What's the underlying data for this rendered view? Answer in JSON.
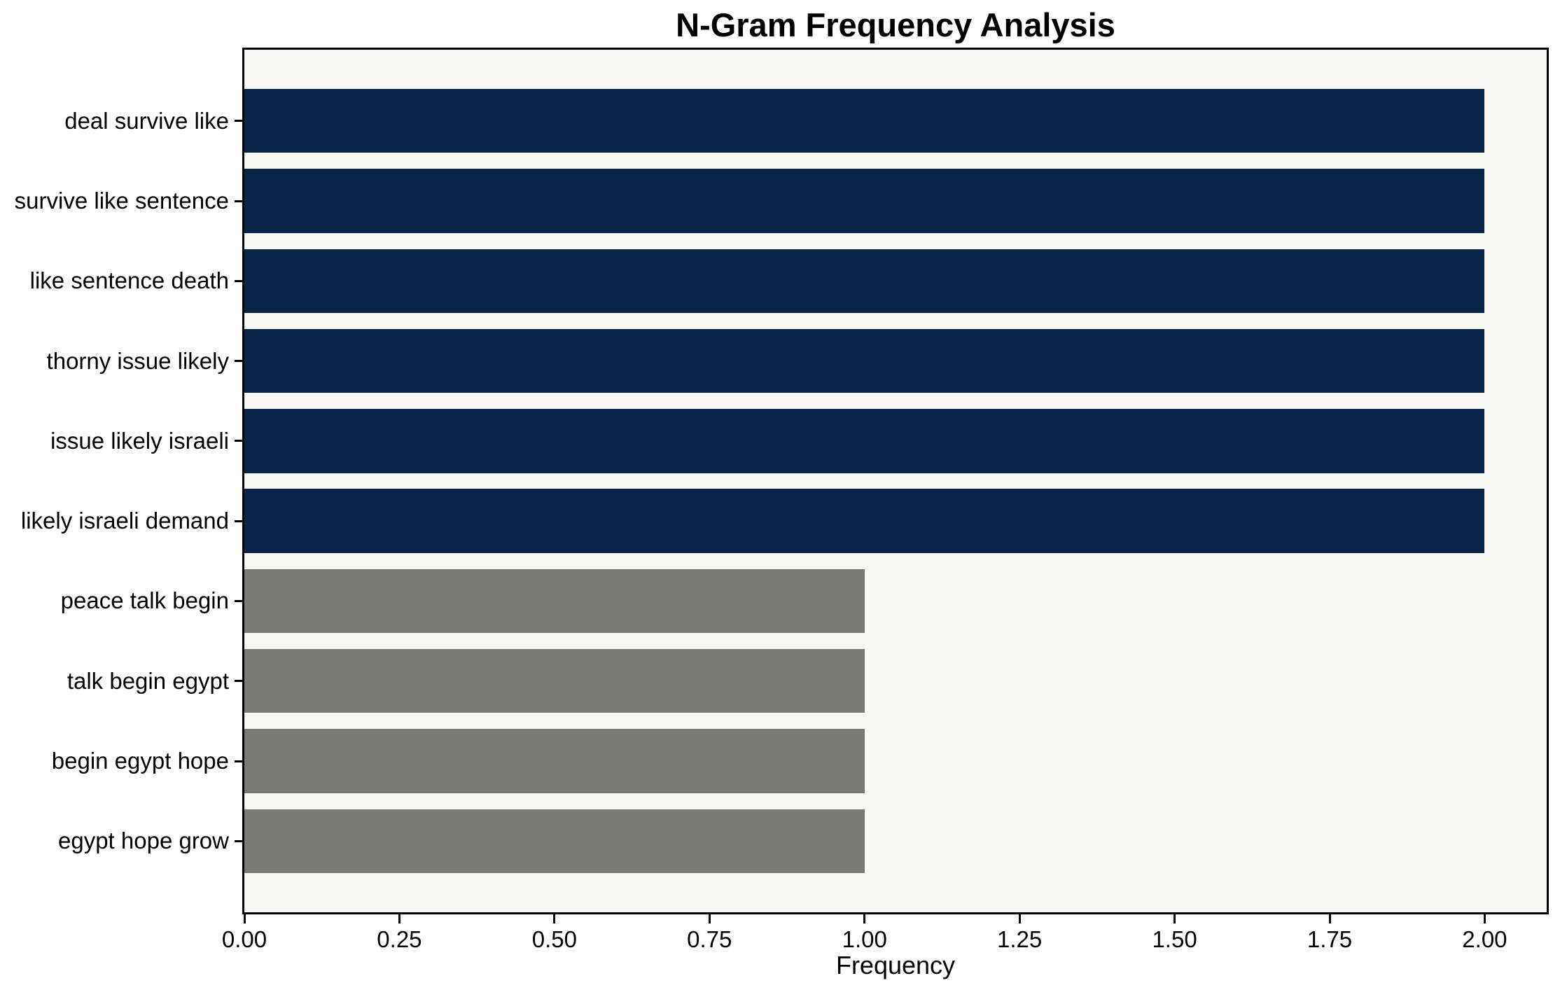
{
  "chart_data": {
    "type": "bar",
    "orientation": "horizontal",
    "title": "N-Gram Frequency Analysis",
    "xlabel": "Frequency",
    "ylabel": "",
    "categories": [
      "deal survive like",
      "survive like sentence",
      "like sentence death",
      "thorny issue likely",
      "issue likely israeli",
      "likely israeli demand",
      "peace talk begin",
      "talk begin egypt",
      "begin egypt hope",
      "egypt hope grow"
    ],
    "values": [
      2,
      2,
      2,
      2,
      2,
      2,
      1,
      1,
      1,
      1
    ],
    "bar_colors": [
      "#0b2548",
      "#0b2548",
      "#0b2548",
      "#0b2548",
      "#0b2548",
      "#0b2548",
      "#7a7a76",
      "#7a7a76",
      "#7a7a76",
      "#7a7a76"
    ],
    "xlim": [
      0,
      2.1
    ],
    "xticks": [
      0,
      0.25,
      0.5,
      0.75,
      1,
      1.25,
      1.5,
      1.75,
      2
    ],
    "xtick_labels": [
      "0.00",
      "0.25",
      "0.50",
      "0.75",
      "1.00",
      "1.25",
      "1.50",
      "1.75",
      "2.00"
    ],
    "grid": false,
    "legend": null,
    "colors": {
      "high_frequency_bar": "#0b2548",
      "low_frequency_bar": "#7a7a76",
      "plot_background": "#f7f7f6",
      "figure_background": "#ffffff",
      "spine": "#000000",
      "text": "#000000"
    }
  }
}
